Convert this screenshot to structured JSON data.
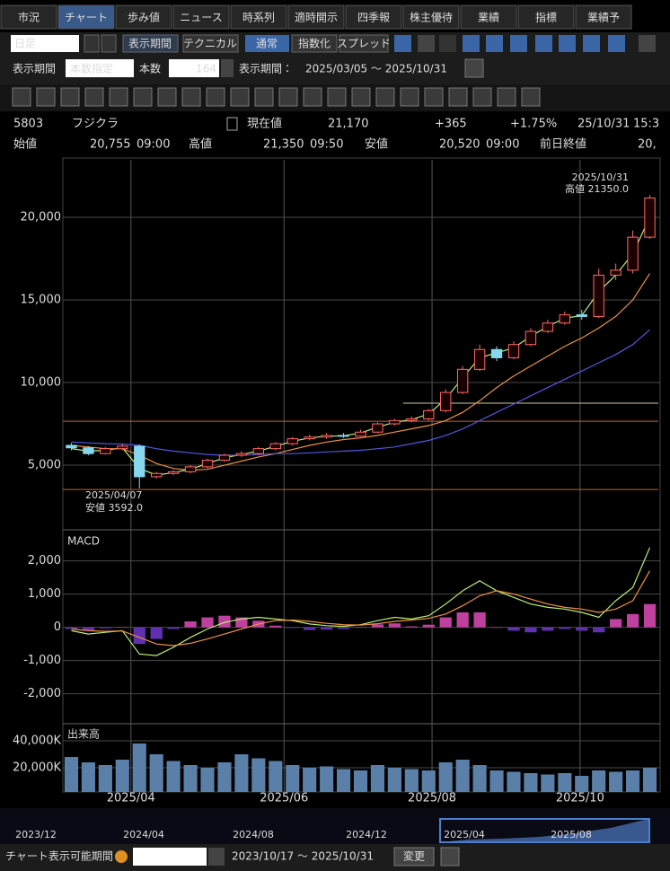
{
  "ui": {
    "tabs": [
      "市況",
      "チャート",
      "歩み値",
      "ニュース",
      "時系列",
      "適時開示",
      "四季報",
      "株主優待",
      "業績",
      "指標",
      "業績予"
    ],
    "toolbar": {
      "interval": "日足",
      "period_button": "表示期間",
      "technical": "テクニカル",
      "modes": [
        "通常",
        "指数化",
        "スプレッド"
      ]
    },
    "period_row": {
      "label": "表示期間",
      "mode": "本数指定",
      "count_label": "本数",
      "count": "164",
      "range_label": "表示期間：",
      "range": "2025/03/05 ～ 2025/10/31"
    },
    "quote": {
      "code": "5803",
      "name": "フジクラ",
      "price_label": "現在値",
      "price": "21,170",
      "change": "+365",
      "change_pct": "+1.75%",
      "date": "25/10/31",
      "time": "15:3"
    },
    "ohlc_row": {
      "open_label": "始値",
      "open": "20,755",
      "open_time": "09:00",
      "high_label": "高値",
      "high": "21,350",
      "high_time": "09:50",
      "low_label": "安値",
      "low": "20,520",
      "low_time": "09:00",
      "prev_label": "前日終値",
      "prev": "20,"
    },
    "navigator": [
      "2023/12",
      "2024/04",
      "2024/08",
      "2024/12",
      "2025/04",
      "2025/08"
    ],
    "footer": {
      "label": "チャート表示可能期間",
      "range": "2023/10/17 ～ 2025/10/31",
      "button": "変更"
    }
  },
  "chart_data": [
    {
      "type": "candlestick",
      "open": [
        6200,
        6050,
        5700,
        6000,
        6150,
        4300,
        4500,
        4600,
        4900,
        5300,
        5600,
        5700,
        6000,
        6300,
        6600,
        6700,
        6800,
        6750,
        7000,
        7500,
        7700,
        7800,
        8300,
        9400,
        10800,
        12000,
        11500,
        12300,
        13100,
        13600,
        14100,
        14000,
        16500,
        16800,
        18800
      ],
      "high": [
        6350,
        6150,
        6100,
        6300,
        6250,
        4600,
        4700,
        5000,
        5400,
        5700,
        5850,
        6100,
        6400,
        6700,
        6850,
        6950,
        6950,
        7150,
        7600,
        7800,
        7950,
        8400,
        9600,
        11000,
        12300,
        12200,
        12500,
        13300,
        13800,
        14300,
        14400,
        16900,
        17200,
        19200,
        21350
      ],
      "low": [
        5900,
        5600,
        5650,
        5900,
        3592,
        4200,
        4400,
        4500,
        4800,
        5200,
        5500,
        5600,
        5900,
        6200,
        6500,
        6600,
        6650,
        6700,
        6950,
        7400,
        7600,
        7700,
        8200,
        9300,
        10700,
        11300,
        11400,
        12200,
        13000,
        13500,
        13800,
        13900,
        16200,
        16600,
        18700
      ],
      "close": [
        6050,
        5700,
        6000,
        6150,
        4300,
        4500,
        4600,
        4900,
        5300,
        5600,
        5700,
        6000,
        6300,
        6600,
        6700,
        6800,
        6750,
        7000,
        7500,
        7700,
        7800,
        8300,
        9400,
        10800,
        12000,
        11500,
        12300,
        13100,
        13600,
        14100,
        14000,
        16500,
        16800,
        18800,
        21170
      ],
      "up_color": "#ff6a6a",
      "down_color": "#86d8ef",
      "series": [
        {
          "color": "#b8f070",
          "values": [
            6000,
            5850,
            5900,
            6050,
            4800,
            4400,
            4550,
            4750,
            5100,
            5450,
            5650,
            5850,
            6150,
            6450,
            6650,
            6750,
            6780,
            6950,
            7300,
            7600,
            7750,
            8100,
            9000,
            10300,
            11500,
            11800,
            12100,
            12800,
            13400,
            13900,
            14050,
            15500,
            16500,
            17800,
            20000
          ]
        },
        {
          "color": "#f09040",
          "values": [
            6200,
            6100,
            6000,
            6000,
            5600,
            5100,
            4800,
            4700,
            4750,
            5000,
            5250,
            5500,
            5700,
            5950,
            6200,
            6400,
            6550,
            6650,
            6800,
            7000,
            7200,
            7400,
            7700,
            8200,
            8900,
            9700,
            10400,
            11000,
            11600,
            12200,
            12700,
            13300,
            14000,
            15000,
            16600
          ]
        },
        {
          "color": "#5058e0",
          "values": [
            6400,
            6350,
            6300,
            6280,
            6200,
            6000,
            5850,
            5750,
            5650,
            5600,
            5600,
            5650,
            5700,
            5700,
            5750,
            5800,
            5850,
            5900,
            6000,
            6100,
            6300,
            6500,
            6800,
            7200,
            7700,
            8200,
            8700,
            9200,
            9700,
            10200,
            10700,
            11200,
            11700,
            12300,
            13200
          ]
        }
      ],
      "hlines": [
        {
          "value": 7660,
          "color": "#c0603a",
          "start": 0
        },
        {
          "value": 3530,
          "color": "#c0603a",
          "start": 0
        },
        {
          "value": 8750,
          "color": "#d8c8a0",
          "start": 20
        }
      ],
      "annotations": [
        {
          "lines": [
            "2025/10/31",
            "高値 21350.0"
          ],
          "color": "#f08888"
        },
        {
          "lines": [
            "2025/04/07",
            "安値 3592.0"
          ],
          "color": "#9ccff0"
        }
      ],
      "ylim": [
        1090,
        23480
      ],
      "yticks": [
        {
          "value": 5000,
          "label": "5,000"
        },
        {
          "value": 10000,
          "label": "10,000"
        },
        {
          "value": 15000,
          "label": "15,000"
        },
        {
          "value": 20000,
          "label": "20,000"
        }
      ],
      "xticks": [
        {
          "value": 3.5,
          "label": "2025/04"
        },
        {
          "value": 12.5,
          "label": "2025/06"
        },
        {
          "value": 21.2,
          "label": "2025/08"
        },
        {
          "value": 29.9,
          "label": "2025/10"
        }
      ]
    },
    {
      "type": "macd",
      "title": "MACD",
      "series": [
        {
          "color": "#b8f070",
          "values": [
            -100,
            -200,
            -150,
            -100,
            -800,
            -850,
            -600,
            -300,
            -50,
            150,
            250,
            300,
            250,
            200,
            100,
            50,
            30,
            80,
            200,
            300,
            250,
            350,
            700,
            1100,
            1400,
            1100,
            900,
            700,
            600,
            550,
            450,
            300,
            800,
            1200,
            2400
          ]
        },
        {
          "color": "#f09040",
          "values": [
            -50,
            -100,
            -120,
            -110,
            -300,
            -500,
            -550,
            -480,
            -350,
            -200,
            -50,
            100,
            200,
            220,
            180,
            120,
            80,
            70,
            110,
            180,
            220,
            270,
            400,
            650,
            950,
            1100,
            1000,
            850,
            700,
            600,
            550,
            450,
            550,
            800,
            1700
          ]
        }
      ],
      "histogram": [
        -50,
        -100,
        -30,
        10,
        -500,
        -350,
        -50,
        180,
        300,
        350,
        300,
        200,
        50,
        -20,
        -80,
        -70,
        -50,
        10,
        90,
        120,
        30,
        80,
        300,
        450,
        450,
        0,
        -100,
        -150,
        -100,
        -50,
        -100,
        -150,
        250,
        400,
        700
      ],
      "pos_color": "#c040a0",
      "neg_color": "#6030b0",
      "ylim": [
        -2900,
        2800
      ],
      "yticks": [
        {
          "value": -2000,
          "label": "-2,000"
        },
        {
          "value": -1000,
          "label": "-1,000"
        },
        0,
        {
          "value": 1000,
          "label": "1,000"
        },
        {
          "value": 2000,
          "label": "2,000"
        }
      ]
    },
    {
      "type": "volume",
      "title": "出来高",
      "color": "#5a7fa8",
      "values": [
        28000,
        24000,
        22000,
        26000,
        38000,
        30000,
        25000,
        22000,
        20000,
        24000,
        30000,
        27000,
        25000,
        22000,
        20000,
        21000,
        19000,
        18000,
        22000,
        20000,
        19000,
        18000,
        24000,
        26000,
        22000,
        18000,
        17000,
        16000,
        15000,
        16000,
        14000,
        18000,
        17000,
        18000,
        20000
      ],
      "ylim": [
        2000,
        50000
      ],
      "yticks": [
        {
          "value": 20000,
          "label": "20,000K"
        },
        {
          "value": 40000,
          "label": "40,000K"
        }
      ]
    }
  ]
}
